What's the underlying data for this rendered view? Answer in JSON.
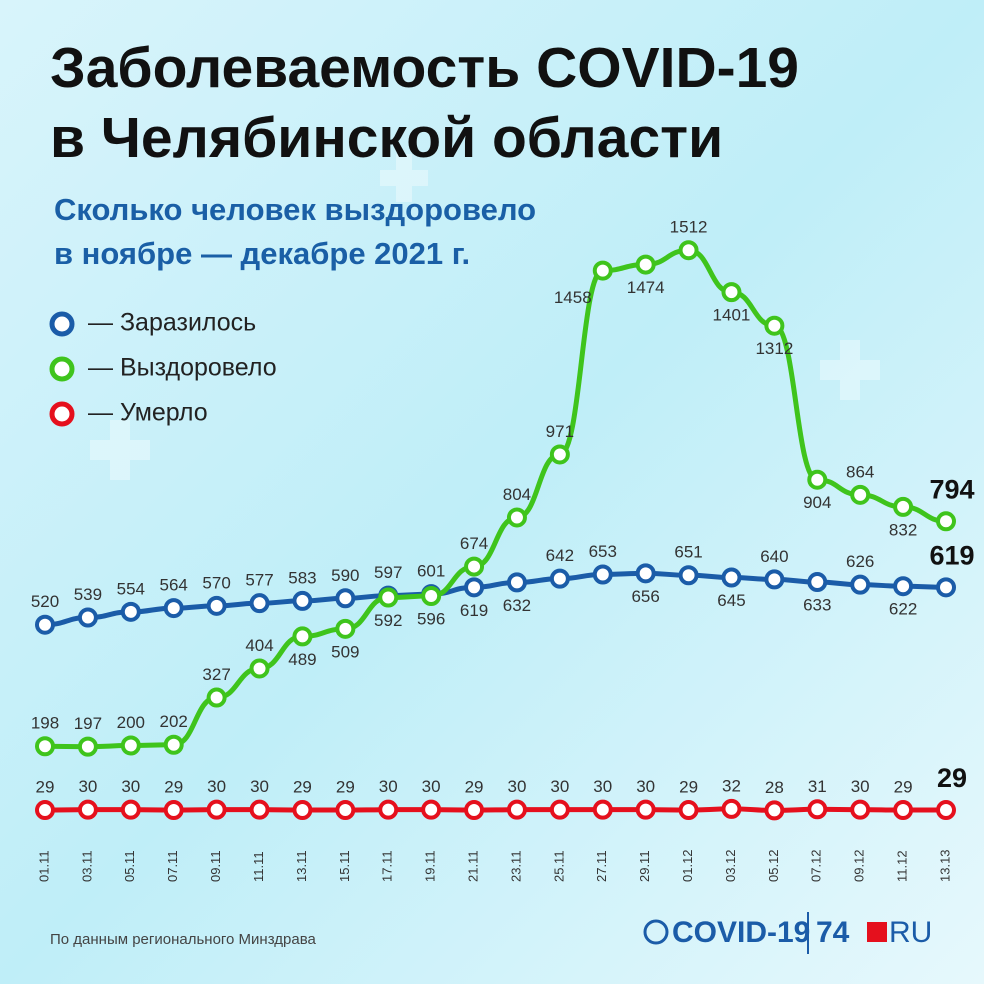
{
  "chart_data": {
    "type": "line",
    "title": [
      "Заболеваемость COVID-19",
      "в Челябинской области"
    ],
    "subtitle": [
      "Сколько человек выздоровело",
      "в ноябре — декабре 2021 г."
    ],
    "categories": [
      "01.11",
      "03.11",
      "05.11",
      "07.11",
      "09.11",
      "11.11",
      "13.11",
      "15.11",
      "17.11",
      "19.11",
      "21.11",
      "23.11",
      "25.11",
      "27.11",
      "29.11",
      "01.12",
      "03.12",
      "05.12",
      "07.12",
      "09.12",
      "11.12",
      "13.13"
    ],
    "series": [
      {
        "name": "— Заразилось",
        "color": "#1b5ca8",
        "values": [
          520,
          539,
          554,
          564,
          570,
          577,
          583,
          590,
          597,
          601,
          619,
          632,
          642,
          653,
          656,
          651,
          645,
          640,
          633,
          626,
          622,
          619
        ]
      },
      {
        "name": "— Выздоровело",
        "color": "#3fc41c",
        "values": [
          198,
          197,
          200,
          202,
          327,
          404,
          489,
          509,
          592,
          596,
          674,
          804,
          971,
          1458,
          1474,
          1512,
          1401,
          1312,
          904,
          864,
          832,
          794
        ]
      },
      {
        "name": "— Умерло",
        "color": "#e5101d",
        "values": [
          29,
          30,
          30,
          29,
          30,
          30,
          29,
          29,
          30,
          30,
          29,
          30,
          30,
          30,
          30,
          29,
          32,
          28,
          31,
          30,
          29,
          29
        ]
      }
    ],
    "ylim": [
      0,
      1600
    ],
    "source": "По данным регионального Минздрава",
    "logo": {
      "left": "COVID-19",
      "mid": "74",
      "right": "RU"
    }
  }
}
